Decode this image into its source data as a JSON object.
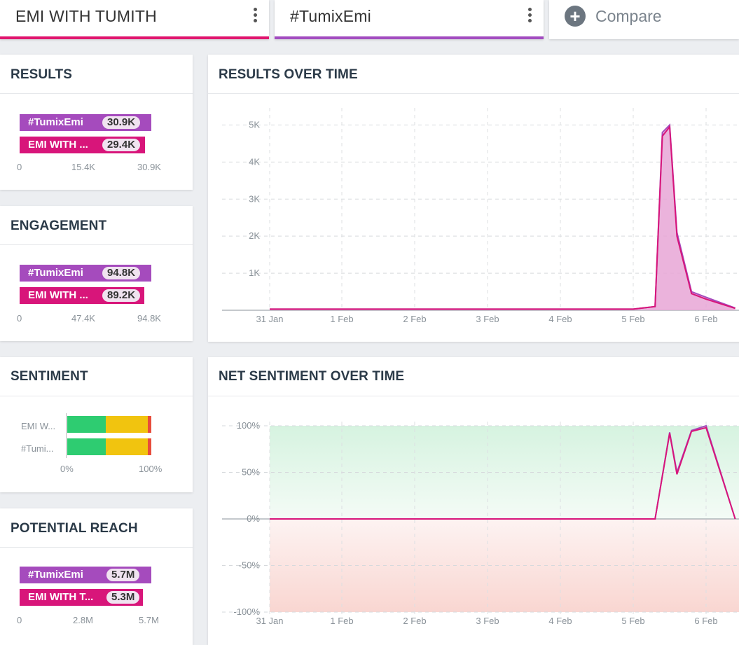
{
  "tabs": [
    {
      "title": "EMI WITH TUMITH",
      "underline": "#e0156e"
    },
    {
      "title": "#TumixEmi",
      "underline": "#a24cc0"
    }
  ],
  "compare": {
    "label": "Compare"
  },
  "colors": {
    "purple": "#a54bbd",
    "magenta": "#d8157a",
    "positive": "#2ecc71",
    "neutral": "#f1c40f",
    "negative": "#e74c3c"
  },
  "results": {
    "title": "RESULTS",
    "bars": [
      {
        "label": "#TumixEmi",
        "value": "30.9K"
      },
      {
        "label": "EMI WITH ...",
        "value": "29.4K"
      }
    ],
    "ticks": [
      "0",
      "15.4K",
      "30.9K"
    ]
  },
  "engagement": {
    "title": "ENGAGEMENT",
    "bars": [
      {
        "label": "#TumixEmi",
        "value": "94.8K"
      },
      {
        "label": "EMI WITH ...",
        "value": "89.2K"
      }
    ],
    "ticks": [
      "0",
      "47.4K",
      "94.8K"
    ]
  },
  "sentiment": {
    "title": "SENTIMENT",
    "rows": [
      {
        "label": "EMI W...",
        "positive": 46,
        "neutral": 50,
        "negative": 4
      },
      {
        "label": "#Tumi...",
        "positive": 46,
        "neutral": 50,
        "negative": 4
      }
    ],
    "ticks": [
      "0%",
      "100%"
    ]
  },
  "reach": {
    "title": "POTENTIAL REACH",
    "bars": [
      {
        "label": "#TumixEmi",
        "value": "5.7M"
      },
      {
        "label": "EMI WITH T...",
        "value": "5.3M"
      }
    ],
    "ticks": [
      "0",
      "2.8M",
      "5.7M"
    ]
  },
  "results_over_time": {
    "title": "RESULTS OVER TIME",
    "y_ticks": [
      "5K",
      "4K",
      "3K",
      "2K",
      "1K"
    ],
    "x_ticks": [
      "31 Jan",
      "1 Feb",
      "2 Feb",
      "3 Feb",
      "4 Feb",
      "5 Feb",
      "6 Feb"
    ]
  },
  "net_sentiment_over_time": {
    "title": "NET SENTIMENT OVER TIME",
    "y_ticks": [
      "100%",
      "50%",
      "0%",
      "-50%",
      "-100%"
    ],
    "x_ticks": [
      "31 Jan",
      "1 Feb",
      "2 Feb",
      "3 Feb",
      "4 Feb",
      "5 Feb",
      "6 Feb"
    ]
  },
  "chart_data": [
    {
      "type": "area",
      "title": "RESULTS OVER TIME",
      "x": [
        "31 Jan",
        "1 Feb",
        "2 Feb",
        "3 Feb",
        "4 Feb",
        "5 Feb",
        "5.3 Feb",
        "5.4 Feb",
        "5.5 Feb",
        "5.6 Feb",
        "5.8 Feb",
        "6 Feb",
        "6.4 Feb"
      ],
      "series": [
        {
          "name": "#TumixEmi",
          "values": [
            30,
            30,
            30,
            30,
            30,
            30,
            100,
            4800,
            5000,
            2100,
            500,
            350,
            60
          ]
        },
        {
          "name": "EMI WITH TUMITH",
          "values": [
            30,
            30,
            30,
            30,
            30,
            30,
            100,
            4700,
            4950,
            2000,
            450,
            300,
            50
          ]
        }
      ],
      "ylim": [
        0,
        5500
      ]
    },
    {
      "type": "line",
      "title": "NET SENTIMENT OVER TIME",
      "x": [
        "31 Jan",
        "1 Feb",
        "2 Feb",
        "3 Feb",
        "4 Feb",
        "5 Feb",
        "5.3 Feb",
        "5.5 Feb",
        "5.6 Feb",
        "5.8 Feb",
        "6 Feb",
        "6.4 Feb"
      ],
      "series": [
        {
          "name": "#TumixEmi",
          "values": [
            0,
            0,
            0,
            0,
            0,
            0,
            0,
            93,
            50,
            95,
            100,
            0
          ]
        },
        {
          "name": "EMI WITH TUMITH",
          "values": [
            0,
            0,
            0,
            0,
            0,
            0,
            0,
            92,
            48,
            94,
            98,
            0
          ]
        }
      ],
      "ylim": [
        -100,
        100
      ]
    }
  ]
}
